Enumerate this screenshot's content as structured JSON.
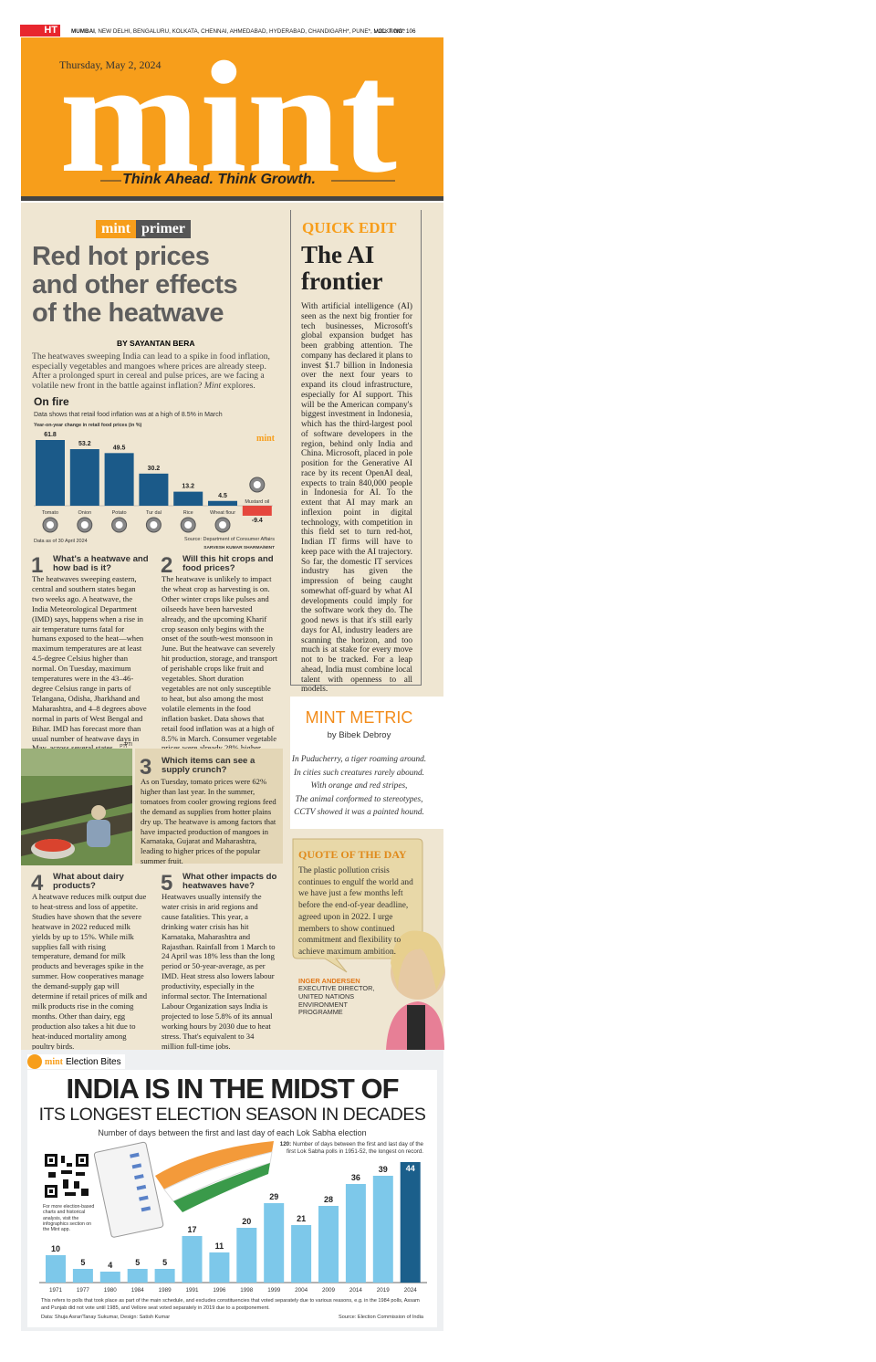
{
  "header": {
    "logo": "HT",
    "cities_lead": "MUMBAI",
    "cities": ", NEW DELHI, BENGALURU, KOLKATA, CHENNAI, AHMEDABAD, HYDERABAD, CHANDIGARH*, PUNE*, LUCKNOW*",
    "volume": "VOL. 7",
    "number": "NO. 106",
    "date": "Thursday, May 2, 2024",
    "masthead": "mint",
    "tagline": "Think Ahead. Think Growth."
  },
  "primer": {
    "badge": [
      "mint",
      "primer"
    ],
    "headline": [
      "Red hot prices",
      "and other effects",
      "of the heatwave"
    ],
    "byline": "BY SAYANTAN BERA",
    "intro": "The heatwaves sweeping India can lead to a spike in food inflation, especially vegetables and mangoes where prices are already steep. After a prolonged spurt in cereal and pulse prices, are we facing a volatile new front in the battle against inflation? ",
    "intro_emphasis": "Mint",
    "intro_end": " explores.",
    "chart": {
      "type": "bar",
      "title": "On fire",
      "subtitle": "Data shows that retail food inflation was at a high of 8.5% in March",
      "axis_label": "Year-on-year change in retail food prices (in %)",
      "watermark": "mint",
      "categories": [
        "Tomato",
        "Onion",
        "Potato",
        "Tur dal",
        "Rice",
        "Wheat flour",
        "Mustard oil"
      ],
      "values": [
        61.8,
        53.2,
        49.5,
        30.2,
        13.2,
        4.5,
        -9.4
      ],
      "color": "#1b5a89",
      "negative_color": "#e5473d",
      "note": "Data as of 30 April 2024",
      "source": "Source: Department of Consumer Affairs",
      "credit": "SARVESH KUMAR SHARMA/MINT"
    },
    "sections": [
      {
        "number": "1",
        "heading": "What's a heatwave and how bad is it?",
        "text": "The heatwaves sweeping eastern, central and southern states began two weeks ago. A heatwave, the India Meteorological Department (IMD) says, happens when a rise in air temperature turns fatal for humans exposed to the heat—when maximum temperatures are at least 4.5-degree Celsius higher than normal. On Tuesday, maximum temperatures were in the 43–46-degree Celsius range in parts of Telangana, Odisha, Jharkhand and Maharashtra, and 4–8 degrees above normal in parts of West Bengal and Bihar. IMD has forecast more than usual number of heatwave days in May, across several states."
      },
      {
        "number": "2",
        "heading": "Will this hit crops and food prices?",
        "text": "The heatwave is unlikely to impact the wheat crop as harvesting is on. Other winter crops like pulses and oilseeds have been harvested already, and the upcoming Kharif crop season only begins with the onset of the south-west monsoon in June. But the heatwave can severely hit production, storage, and transport of perishable crops like fruit and vegetables. Short duration vegetables are not only susceptible to heat, but also among the most volatile elements in the food inflation basket. Data shows that retail food inflation was at a high of 8.5% in March. Consumer vegetable prices were already 28% higher year-on-year."
      },
      {
        "number": "3",
        "heading": "Which items can see a supply crunch?",
        "text": "As on Tuesday, tomato prices were 62% higher than last year. In the summer, tomatoes from cooler growing regions feed the demand as supplies from hotter plains dry up. The heatwave is among factors that have impacted production of mangoes in Karnataka, Gujarat and Maharashtra, leading to higher prices of the popular summer fruit."
      },
      {
        "number": "4",
        "heading": "What about dairy products?",
        "text": "A heatwave reduces milk output due to heat-stress and loss of appetite. Studies have shown that the severe heatwave in 2022 reduced milk yields by up to 15%. While milk supplies fall with rising temperature, demand for milk products and beverages spike in the summer. How cooperatives manage the demand-supply gap will determine if retail prices of milk and milk products rise in the coming months. Other than dairy, egg production also takes a hit due to heat-induced mortality among poultry birds."
      },
      {
        "number": "5",
        "heading": "What other impacts do heatwaves have?",
        "text": "Heatwaves usually intensify the water crisis in arid regions and cause fatalities. This year, a drinking water crisis has hit Karnataka, Maharashtra and Rajasthan. Rainfall from 1 March to 24 April was 18% less than the long period or 50-year-average, as per IMD. Heat stress also lowers labour productivity, especially in the informal sector. The International Labour Organization says India is projected to lose 5.8% of its annual working hours by 2030 due to heat stress. That's equivalent to 34 million full-time jobs."
      }
    ],
    "photo_credit": "PTI"
  },
  "quick_edit": {
    "label": "QUICK EDIT",
    "title": "The AI frontier",
    "text": "With artificial intelligence (AI) seen as the next big frontier for tech businesses, Microsoft's global expansion budget has been grabbing attention. The company has declared it plans to invest $1.7 billion in Indonesia over the next four years to expand its cloud infrastructure, especially for AI support. This will be the American company's biggest investment in Indonesia, which has the third-largest pool of software developers in the region, behind only India and China. Microsoft, placed in pole position for the Generative AI race by its recent OpenAI deal, expects to train 840,000 people in Indonesia for AI. To the extent that AI may mark an inflexion point in digital technology, with competition in this field set to turn red-hot, Indian IT firms will have to keep pace with the AI trajectory. So far, the domestic IT services industry has given the impression of being caught somewhat off-guard by what AI developments could imply for the software work they do. The good news is that it's still early days for AI, industry leaders are scanning the horizon, and too much is at stake for every move not to be tracked. For a leap ahead, India must combine local talent with openness to all models."
  },
  "mint_metric": {
    "label": "MINT METRIC",
    "byline": "by Bibek Debroy",
    "lines": [
      "In Puducherry, a tiger roaming around.",
      "In cities such creatures rarely abound.",
      "With orange and red stripes,",
      "The animal conformed to stereotypes,",
      "CCTV showed it was a painted hound."
    ]
  },
  "quote": {
    "label": "QUOTE OF THE DAY",
    "text": "The plastic pollution crisis continues to engulf the world and we have just a few months left before the end-of-year deadline, agreed upon in 2022. I urge members to show continued commitment and flexibility to achieve maximum ambition.",
    "name": "INGER ANDERSEN",
    "title": [
      "EXECUTIVE DIRECTOR,",
      "UNITED NATIONS",
      "ENVIRONMENT",
      "PROGRAMME"
    ]
  },
  "election": {
    "badge": [
      "mint",
      "Election Bites"
    ],
    "title": "INDIA IS IN THE MIDST OF",
    "title2": "ITS LONGEST ELECTION SEASON IN DECADES",
    "chart": {
      "type": "bar",
      "subtitle": "Number of days between the first and last day of each Lok Sabha election",
      "annotation_lead": "120:",
      "annotation": "Number of days between the first and last day of the first Lok Sabha polls in 1951-52, the longest on record.",
      "categories": [
        "1971",
        "1977",
        "1980",
        "1984",
        "1989",
        "1991",
        "1996",
        "1998",
        "1999",
        "2004",
        "2009",
        "2014",
        "2019",
        "2024"
      ],
      "values": [
        10,
        5,
        4,
        5,
        5,
        17,
        11,
        20,
        29,
        21,
        28,
        36,
        39,
        44
      ],
      "colors": [
        "#7dc8ea",
        "#7dc8ea",
        "#7dc8ea",
        "#7dc8ea",
        "#7dc8ea",
        "#7dc8ea",
        "#7dc8ea",
        "#7dc8ea",
        "#7dc8ea",
        "#7dc8ea",
        "#7dc8ea",
        "#7dc8ea",
        "#7dc8ea",
        "#1b5f8b"
      ]
    },
    "qr_note": "For more election-based charts and historical analysis, visit the infographics section on the Mint app.",
    "note": "This refers to polls that took place as part of the main schedule, and excludes constituencies that voted separately due to various reasons, e.g. in the 1984 polls, Assam and Punjab did not vote until 1985, and Vellore seat voted separately in 2019 due to a postponement.",
    "credit": "Data: Shuja Asrar/Tanay Sukumar, Design: Satish Kumar",
    "source": "Source: Election Commission of India"
  }
}
